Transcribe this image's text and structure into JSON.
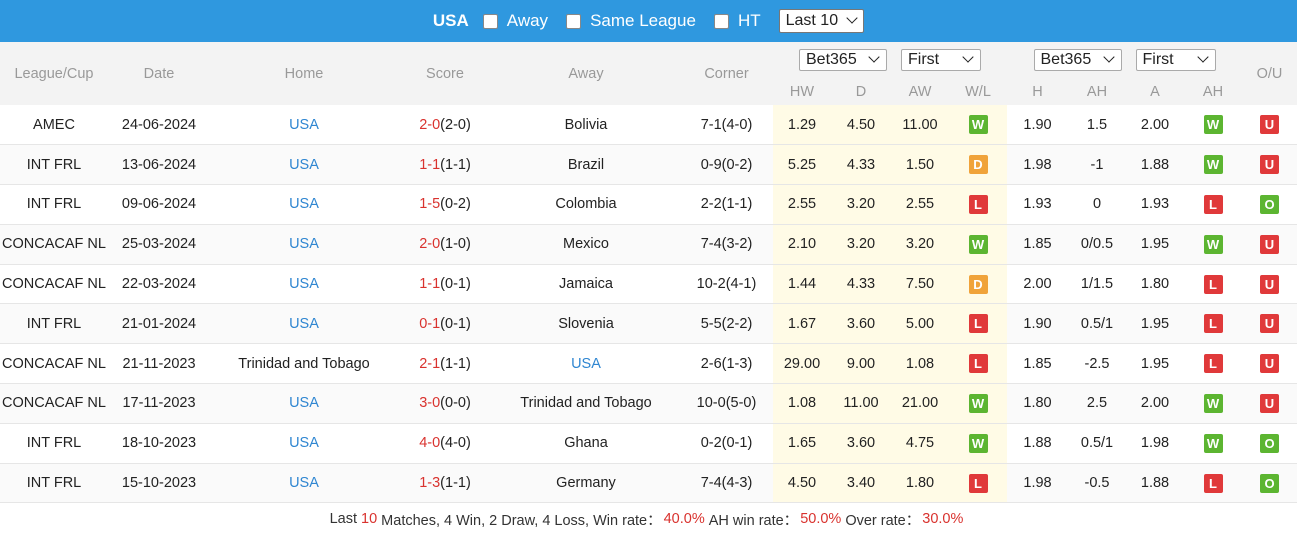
{
  "topbar": {
    "team": "USA",
    "filters": [
      {
        "label": "Away"
      },
      {
        "label": "Same League"
      },
      {
        "label": "HT"
      }
    ],
    "range_select": "Last 10"
  },
  "headers": {
    "league": "League/Cup",
    "date": "Date",
    "home": "Home",
    "score": "Score",
    "away": "Away",
    "corner": "Corner",
    "ou": "O/U",
    "odds_company_1": "Bet365",
    "odds_mode_1": "First",
    "odds_company_2": "Bet365",
    "odds_mode_2": "First",
    "hw": "HW",
    "d": "D",
    "aw": "AW",
    "wl": "W/L",
    "h": "H",
    "ah": "AH",
    "a": "A",
    "ah2": "AH"
  },
  "rows": [
    {
      "league": "AMEC",
      "date": "24-06-2024",
      "home": "USA",
      "home_team_highlight": true,
      "score": "2-0",
      "ht": "(2-0)",
      "away": "Bolivia",
      "away_team_highlight": false,
      "corner": "7-1(4-0)",
      "hw": "1.29",
      "d": "4.50",
      "aw": "11.00",
      "wl": "W",
      "h": "1.90",
      "ah": "1.5",
      "a": "2.00",
      "ah_res": "W",
      "ou": "U"
    },
    {
      "league": "INT FRL",
      "date": "13-06-2024",
      "home": "USA",
      "home_team_highlight": true,
      "score": "1-1",
      "ht": "(1-1)",
      "away": "Brazil",
      "away_team_highlight": false,
      "corner": "0-9(0-2)",
      "hw": "5.25",
      "d": "4.33",
      "aw": "1.50",
      "wl": "D",
      "h": "1.98",
      "ah": "-1",
      "a": "1.88",
      "ah_res": "W",
      "ou": "U"
    },
    {
      "league": "INT FRL",
      "date": "09-06-2024",
      "home": "USA",
      "home_team_highlight": true,
      "score": "1-5",
      "ht": "(0-2)",
      "away": "Colombia",
      "away_team_highlight": false,
      "corner": "2-2(1-1)",
      "hw": "2.55",
      "d": "3.20",
      "aw": "2.55",
      "wl": "L",
      "h": "1.93",
      "ah": "0",
      "a": "1.93",
      "ah_res": "L",
      "ou": "O"
    },
    {
      "league": "CONCACAF NL",
      "date": "25-03-2024",
      "home": "USA",
      "home_team_highlight": true,
      "score": "2-0",
      "ht": "(1-0)",
      "away": "Mexico",
      "away_team_highlight": false,
      "corner": "7-4(3-2)",
      "hw": "2.10",
      "d": "3.20",
      "aw": "3.20",
      "wl": "W",
      "h": "1.85",
      "ah": "0/0.5",
      "a": "1.95",
      "ah_res": "W",
      "ou": "U"
    },
    {
      "league": "CONCACAF NL",
      "date": "22-03-2024",
      "home": "USA",
      "home_team_highlight": true,
      "score": "1-1",
      "ht": "(0-1)",
      "away": "Jamaica",
      "away_team_highlight": false,
      "corner": "10-2(4-1)",
      "hw": "1.44",
      "d": "4.33",
      "aw": "7.50",
      "wl": "D",
      "h": "2.00",
      "ah": "1/1.5",
      "a": "1.80",
      "ah_res": "L",
      "ou": "U"
    },
    {
      "league": "INT FRL",
      "date": "21-01-2024",
      "home": "USA",
      "home_team_highlight": true,
      "score": "0-1",
      "ht": "(0-1)",
      "away": "Slovenia",
      "away_team_highlight": false,
      "corner": "5-5(2-2)",
      "hw": "1.67",
      "d": "3.60",
      "aw": "5.00",
      "wl": "L",
      "h": "1.90",
      "ah": "0.5/1",
      "a": "1.95",
      "ah_res": "L",
      "ou": "U"
    },
    {
      "league": "CONCACAF NL",
      "date": "21-11-2023",
      "home": "Trinidad and Tobago",
      "home_team_highlight": false,
      "score": "2-1",
      "ht": "(1-1)",
      "away": "USA",
      "away_team_highlight": true,
      "corner": "2-6(1-3)",
      "hw": "29.00",
      "d": "9.00",
      "aw": "1.08",
      "wl": "L",
      "h": "1.85",
      "ah": "-2.5",
      "a": "1.95",
      "ah_res": "L",
      "ou": "U"
    },
    {
      "league": "CONCACAF NL",
      "date": "17-11-2023",
      "home": "USA",
      "home_team_highlight": true,
      "score": "3-0",
      "ht": "(0-0)",
      "away": "Trinidad and Tobago",
      "away_team_highlight": false,
      "corner": "10-0(5-0)",
      "hw": "1.08",
      "d": "11.00",
      "aw": "21.00",
      "wl": "W",
      "h": "1.80",
      "ah": "2.5",
      "a": "2.00",
      "ah_res": "W",
      "ou": "U"
    },
    {
      "league": "INT FRL",
      "date": "18-10-2023",
      "home": "USA",
      "home_team_highlight": true,
      "score": "4-0",
      "ht": "(4-0)",
      "away": "Ghana",
      "away_team_highlight": false,
      "corner": "0-2(0-1)",
      "hw": "1.65",
      "d": "3.60",
      "aw": "4.75",
      "wl": "W",
      "h": "1.88",
      "ah": "0.5/1",
      "a": "1.98",
      "ah_res": "W",
      "ou": "O"
    },
    {
      "league": "INT FRL",
      "date": "15-10-2023",
      "home": "USA",
      "home_team_highlight": true,
      "score": "1-3",
      "ht": "(1-1)",
      "away": "Germany",
      "away_team_highlight": false,
      "corner": "7-4(4-3)",
      "hw": "4.50",
      "d": "3.40",
      "aw": "1.80",
      "wl": "L",
      "h": "1.98",
      "ah": "-0.5",
      "a": "1.88",
      "ah_res": "L",
      "ou": "O"
    }
  ],
  "footer": {
    "prefix": "Last",
    "count": "10",
    "matches_text": "Matches, 4 Win, 2 Draw, 4 Loss, Win rate：",
    "win_rate": "40.0%",
    "ah_label": "AH win rate：",
    "ah_rate": "50.0%",
    "over_label": "Over rate：",
    "over_rate": "30.0%"
  },
  "colors": {
    "topbar": "#2f98df",
    "team_link": "#2f86d1",
    "score_red": "#d9322e",
    "win_green": "#5cb531",
    "draw_orange": "#f0a33a",
    "loss_red": "#e0393a",
    "odds_highlight": "#fffbe6"
  }
}
